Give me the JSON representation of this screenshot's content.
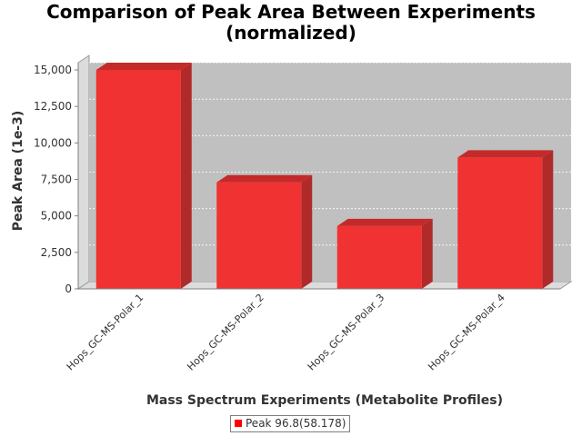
{
  "chart_data": {
    "type": "bar",
    "title_lines": [
      "Comparison of Peak Area Between Experiments",
      "(normalized)"
    ],
    "xlabel": "Mass Spectrum Experiments (Metabolite Profiles)",
    "ylabel": "Peak Area (1e-3)",
    "categories": [
      "Hops_GC-MS-Polar_1",
      "Hops_GC-MS-Polar_2",
      "Hops_GC-MS-Polar_3",
      "Hops_GC-MS-Polar_4"
    ],
    "series": [
      {
        "name": "Peak 96.8(58.178)",
        "values": [
          15000,
          7300,
          4300,
          9000
        ]
      }
    ],
    "ylim": [
      0,
      15000
    ],
    "yticks": [
      0,
      2500,
      5000,
      7500,
      10000,
      12500,
      15000
    ],
    "ytick_labels": [
      "0",
      "2,500",
      "5,000",
      "7,500",
      "10,000",
      "12,500",
      "15,000"
    ],
    "grid": true,
    "legend_position": "bottom",
    "colors": {
      "bar": "#f03232",
      "bar_top": "#c42a2a",
      "bar_side": "#b02a2a",
      "plot_bg": "#c0c0c0"
    }
  }
}
